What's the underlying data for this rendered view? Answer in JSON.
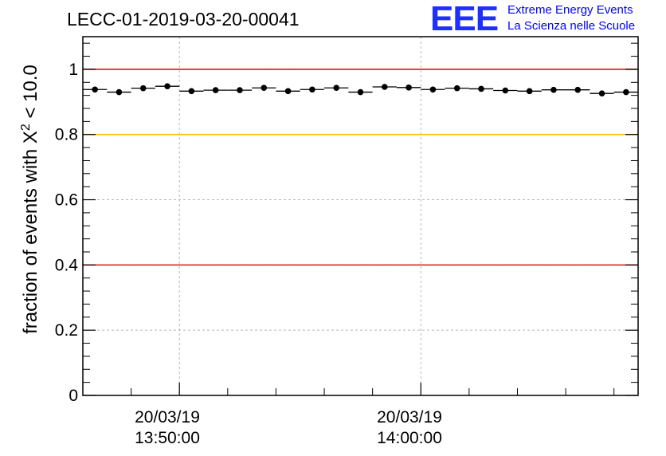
{
  "title": "LECC-01-2019-03-20-00041",
  "brand": {
    "logo": "EEE",
    "line1": "Extreme Energy Events",
    "line2": "La Scienza nelle Scuole",
    "color": "#0000ff"
  },
  "chart_data": {
    "type": "scatter",
    "title": "LECC-01-2019-03-20-00041",
    "ylabel": {
      "prefix": "fraction of events with ",
      "symbol": "X",
      "superscript": "2",
      "suffix": " < 10.0"
    },
    "xlabel": "",
    "ylim": [
      0,
      1.1
    ],
    "yticks": [
      0,
      0.2,
      0.4,
      0.6,
      0.8,
      1
    ],
    "ytick_labels": [
      "0",
      "0.2",
      "0.4",
      "0.6",
      "0.8",
      "1"
    ],
    "x_units": "minutes",
    "xlim": [
      "20/03/19 13:46:00",
      "20/03/19 14:09:00"
    ],
    "xticks": [
      {
        "time": "20/03/19 13:50:00",
        "date_label": "20/03/19",
        "time_label": "13:50:00"
      },
      {
        "time": "20/03/19 14:00:00",
        "date_label": "20/03/19",
        "time_label": "14:00:00"
      }
    ],
    "grid": true,
    "reference_lines": [
      {
        "y": 1.0,
        "color": "#e8121b"
      },
      {
        "y": 0.8,
        "color": "#ffc000"
      },
      {
        "y": 0.4,
        "color": "#e8121b"
      }
    ],
    "series": [
      {
        "bin_width_minutes": 1,
        "x": [
          "13:46:30",
          "13:47:30",
          "13:48:30",
          "13:49:30",
          "13:50:30",
          "13:51:30",
          "13:52:30",
          "13:53:30",
          "13:54:30",
          "13:55:30",
          "13:56:30",
          "13:57:30",
          "13:58:30",
          "13:59:30",
          "14:00:30",
          "14:01:30",
          "14:02:30",
          "14:03:30",
          "14:04:30",
          "14:05:30",
          "14:06:30",
          "14:07:30",
          "14:08:30"
        ],
        "y": [
          0.938,
          0.93,
          0.942,
          0.948,
          0.933,
          0.936,
          0.936,
          0.943,
          0.933,
          0.938,
          0.943,
          0.93,
          0.946,
          0.944,
          0.938,
          0.942,
          0.94,
          0.935,
          0.933,
          0.937,
          0.937,
          0.926,
          0.93
        ]
      }
    ]
  }
}
